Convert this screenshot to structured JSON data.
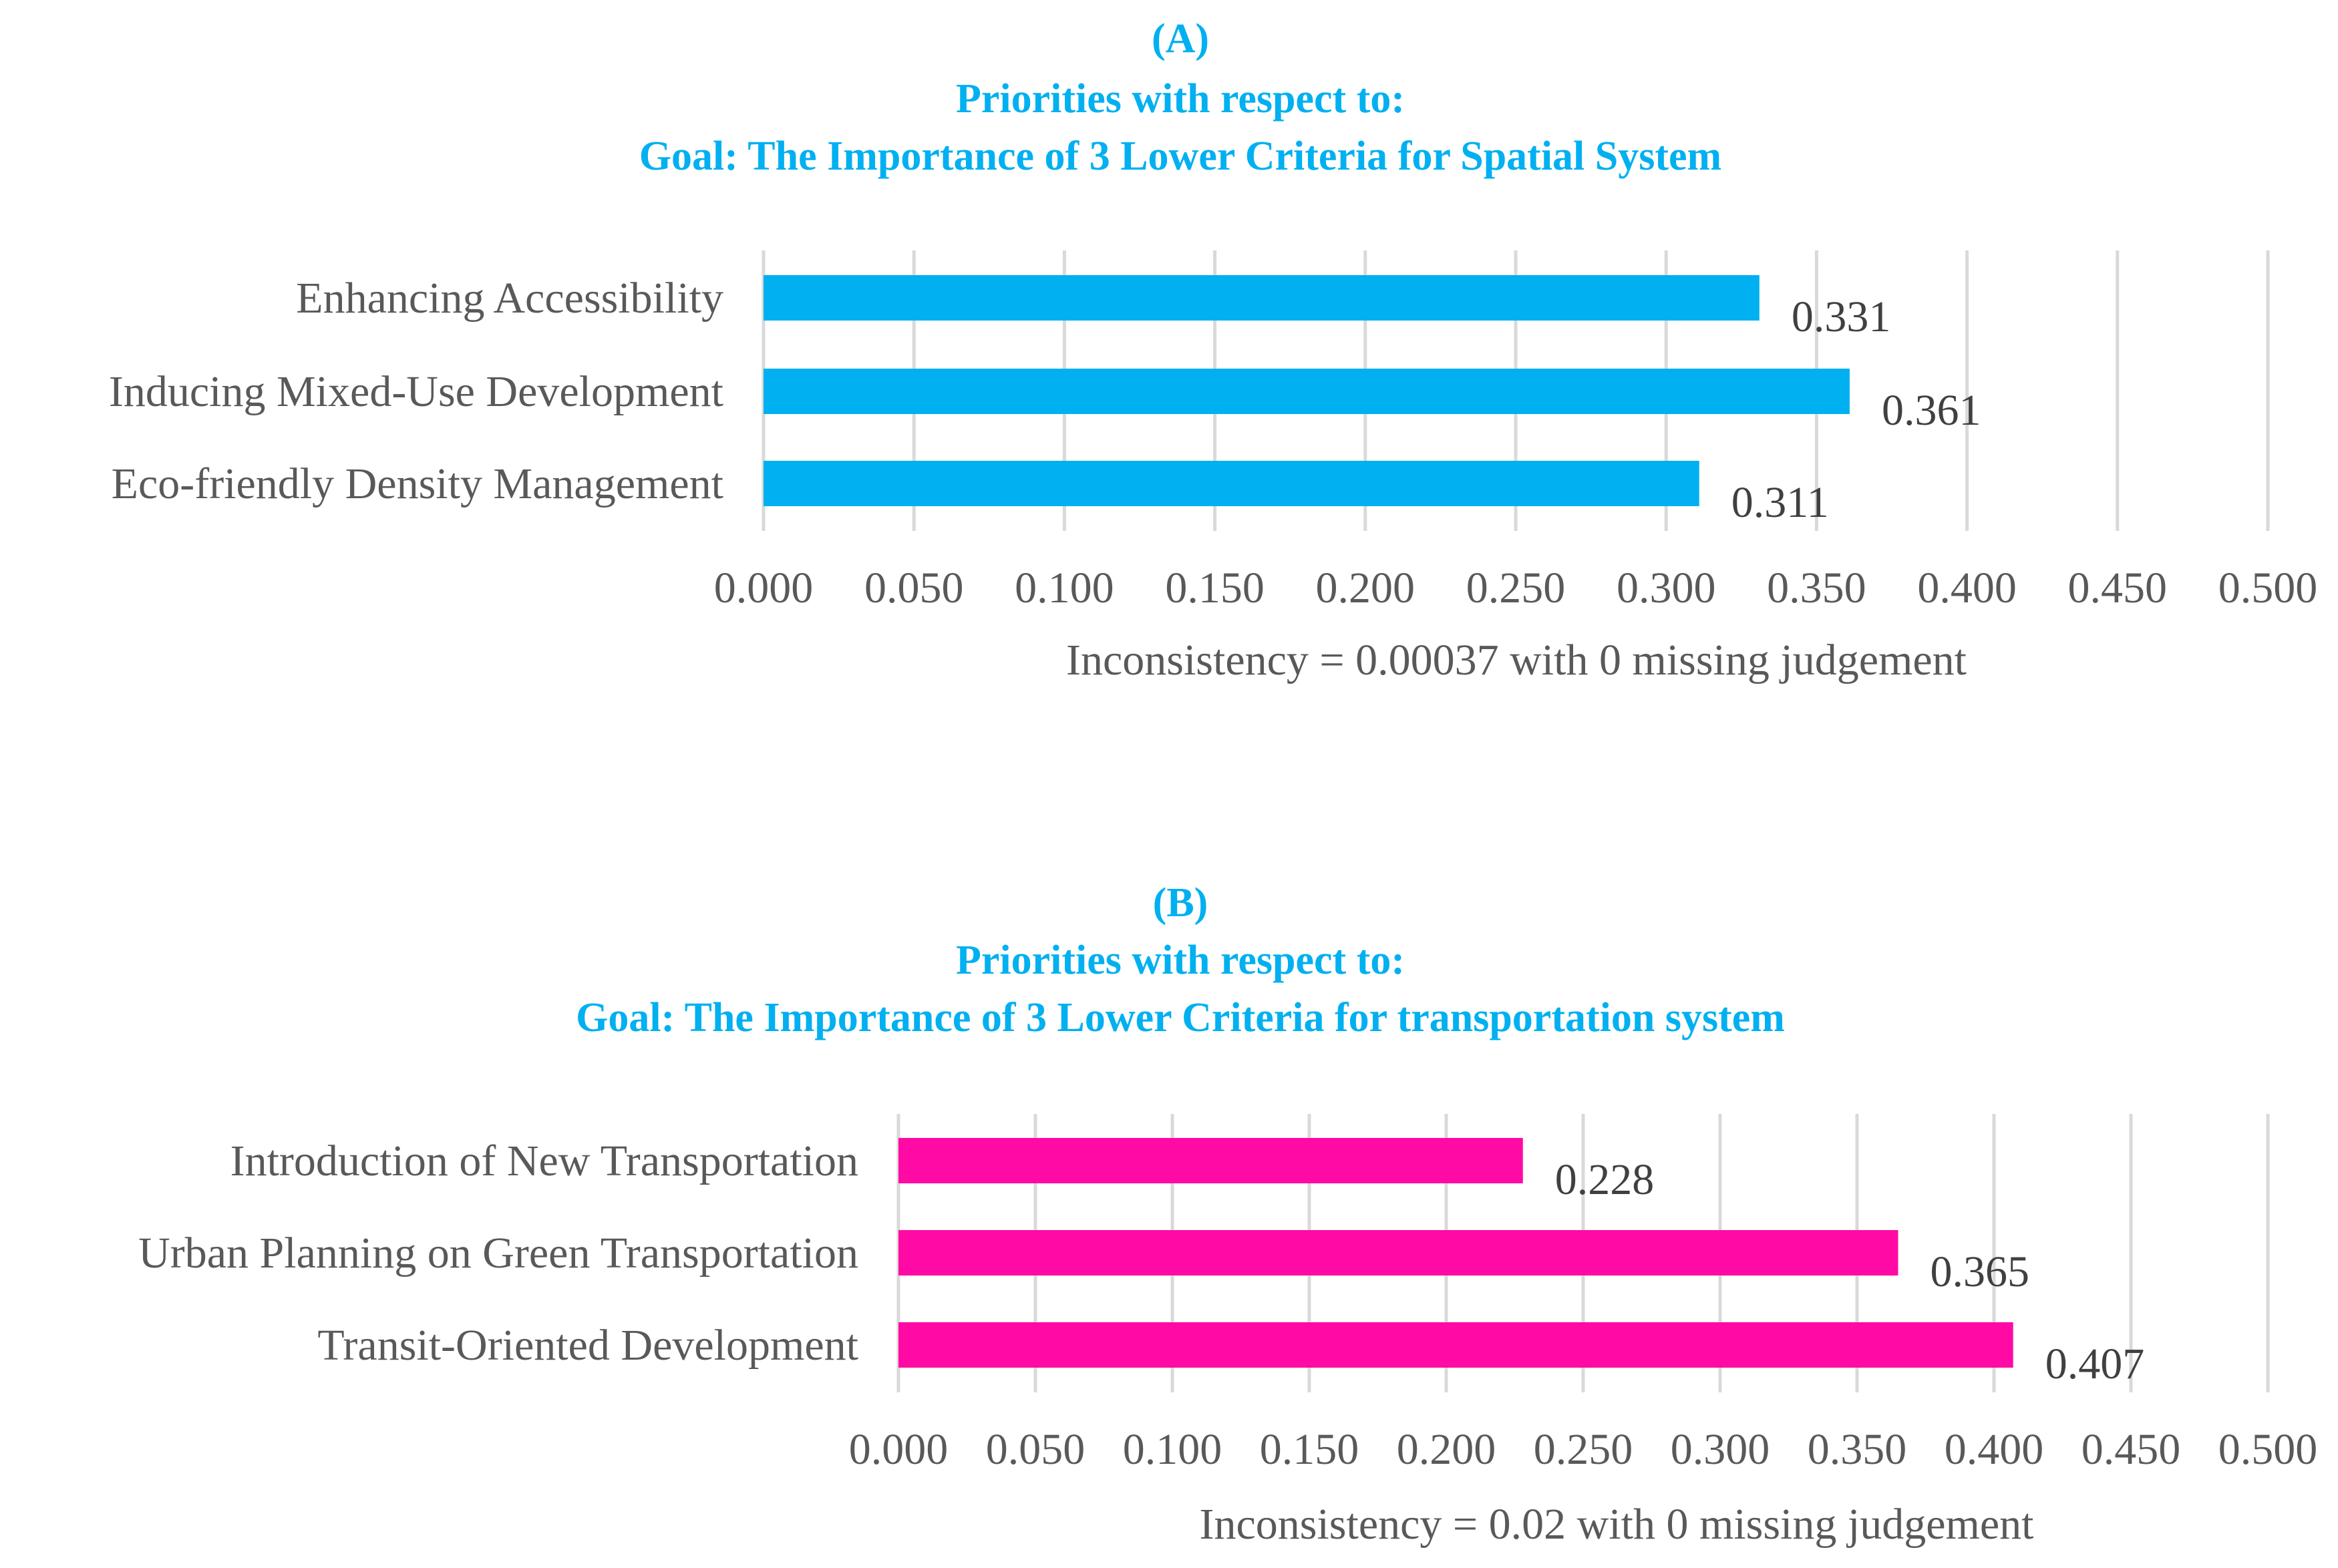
{
  "chart_data": [
    {
      "type": "bar",
      "orientation": "horizontal",
      "panel_label": "(A)",
      "title": "Priorities with respect to:",
      "subtitle": "Goal: The Importance of 3 Lower Criteria for Spatial System",
      "categories": [
        "Enhancing Accessibility",
        "Inducing Mixed-Use Development",
        "Eco-friendly Density Management"
      ],
      "values": [
        0.331,
        0.361,
        0.311
      ],
      "value_labels": [
        "0.331",
        "0.361",
        "0.311"
      ],
      "xlim": [
        0,
        0.5
      ],
      "xticks": [
        0,
        0.05,
        0.1,
        0.15,
        0.2,
        0.25,
        0.3,
        0.35,
        0.4,
        0.45,
        0.5
      ],
      "xtick_labels": [
        "0.000",
        "0.050",
        "0.100",
        "0.150",
        "0.200",
        "0.250",
        "0.300",
        "0.350",
        "0.400",
        "0.450",
        "0.500"
      ],
      "xlabel": "Inconsistency = 0.00037 with 0 missing judgement",
      "grid": true,
      "color": "#00b0f0"
    },
    {
      "type": "bar",
      "orientation": "horizontal",
      "panel_label": "(B)",
      "title": "Priorities with respect to:",
      "subtitle": "Goal: The Importance of 3 Lower Criteria for transportation system",
      "categories": [
        "Introduction of New Transportation",
        "Urban Planning on Green Transportation",
        "Transit-Oriented Development"
      ],
      "values": [
        0.228,
        0.365,
        0.407
      ],
      "value_labels": [
        "0.228",
        "0.365",
        "0.407"
      ],
      "xlim": [
        0,
        0.5
      ],
      "xticks": [
        0,
        0.05,
        0.1,
        0.15,
        0.2,
        0.25,
        0.3,
        0.35,
        0.4,
        0.45,
        0.5
      ],
      "xtick_labels": [
        "0.000",
        "0.050",
        "0.100",
        "0.150",
        "0.200",
        "0.250",
        "0.300",
        "0.350",
        "0.400",
        "0.450",
        "0.500"
      ],
      "xlabel": "Inconsistency = 0.02 with 0 missing judgement",
      "grid": true,
      "color": "#ff0aa5"
    }
  ],
  "theme": {
    "title_color": "#00b0f0"
  }
}
